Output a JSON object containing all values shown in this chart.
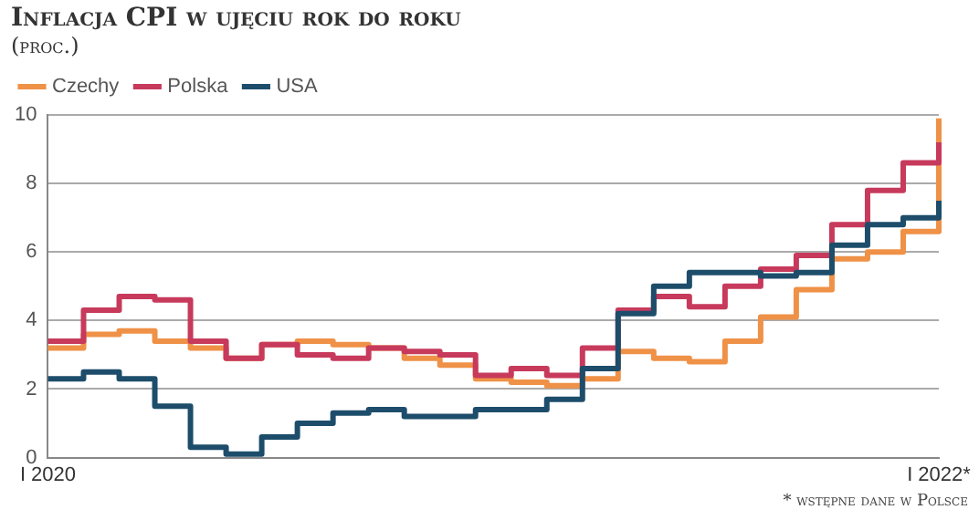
{
  "chart_data": {
    "type": "step",
    "title": "Inflacja CPI w ujęciu rok do roku",
    "subtitle": "(proc.)",
    "categories": [
      "I 2020",
      null,
      null,
      null,
      null,
      null,
      null,
      null,
      null,
      null,
      null,
      null,
      null,
      null,
      null,
      null,
      null,
      null,
      null,
      null,
      null,
      null,
      null,
      null,
      null,
      "I 2022*"
    ],
    "series": [
      {
        "name": "Czechy",
        "color": "#ef9147",
        "values": [
          3.2,
          3.6,
          3.7,
          3.4,
          3.2,
          2.9,
          3.3,
          3.4,
          3.3,
          3.2,
          2.9,
          2.7,
          2.3,
          2.2,
          2.1,
          2.3,
          3.1,
          2.9,
          2.8,
          3.4,
          4.1,
          4.9,
          5.8,
          6.0,
          6.6,
          9.9
        ]
      },
      {
        "name": "Polska",
        "color": "#c73a5c",
        "values": [
          3.4,
          4.3,
          4.7,
          4.6,
          3.4,
          2.9,
          3.3,
          3.0,
          2.9,
          3.2,
          3.1,
          3.0,
          2.4,
          2.6,
          2.4,
          3.2,
          4.3,
          4.7,
          4.4,
          5.0,
          5.5,
          5.9,
          6.8,
          7.8,
          8.6,
          9.2
        ]
      },
      {
        "name": "USA",
        "color": "#1d4d6b",
        "values": [
          2.3,
          2.5,
          2.3,
          1.5,
          0.3,
          0.1,
          0.6,
          1.0,
          1.3,
          1.4,
          1.2,
          1.2,
          1.4,
          1.4,
          1.7,
          2.6,
          4.2,
          5.0,
          5.4,
          5.4,
          5.3,
          5.4,
          6.2,
          6.8,
          7.0,
          7.5
        ]
      }
    ],
    "ylim": [
      0,
      10
    ],
    "yticks": [
      0,
      2,
      4,
      6,
      8,
      10
    ],
    "grid": "y",
    "legend": "top left",
    "marker": "none",
    "line_style": "solid",
    "annotations": [
      "* wstępne dane w Polsce"
    ]
  }
}
